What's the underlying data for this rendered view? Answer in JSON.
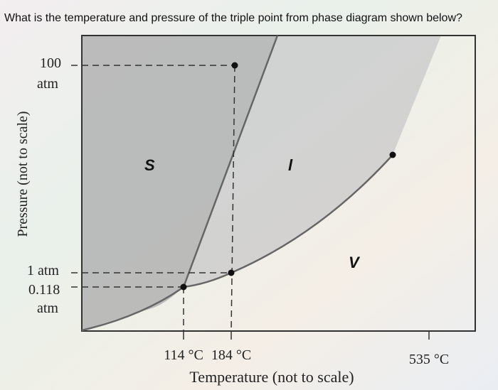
{
  "question": "What is the temperature and pressure of the triple point from phase diagram shown below?",
  "y_axis": {
    "title": "Pressure (not to scale)",
    "labels": [
      [
        "100",
        "atm"
      ],
      [
        "1 atm"
      ],
      [
        "0.118",
        "atm"
      ]
    ]
  },
  "x_axis": {
    "title": "Temperature (not to scale)",
    "labels": [
      "114 °C",
      "184 °C",
      "535 °C"
    ]
  },
  "regions": [
    "S",
    "l",
    "V"
  ]
}
